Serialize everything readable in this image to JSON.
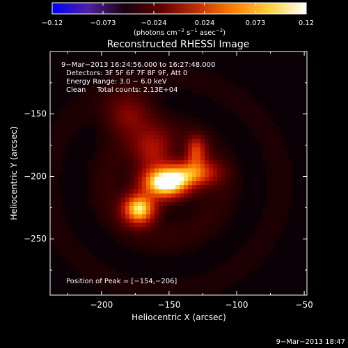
{
  "colorbar": {
    "ticks": [
      "−0.12",
      "−0.073",
      "−0.024",
      "0.024",
      "0.073",
      "0.12"
    ],
    "unit_parts": [
      "(photons cm",
      "−2",
      " s",
      "−1",
      " asec",
      "−2",
      ")"
    ],
    "colors": [
      "#0000ff",
      "#5020a0",
      "#1a0010",
      "#600000",
      "#c03000",
      "#ff8000",
      "#ffd040",
      "#ffffff"
    ]
  },
  "chart_data": {
    "type": "heatmap",
    "title": "Reconstructed RHESSI Image",
    "xlabel": "Heliocentric X (arcsec)",
    "ylabel": "Heliocentric Y (arcsec)",
    "xlim": [
      -238,
      -48
    ],
    "ylim": [
      -295,
      -100
    ],
    "xticks": [
      -200,
      -150,
      -100,
      -50
    ],
    "xtick_labels": [
      "−200",
      "−150",
      "−100",
      "−50"
    ],
    "yticks": [
      -150,
      -200,
      -250
    ],
    "ytick_labels": [
      "−150",
      "−200",
      "−250"
    ],
    "zlim": [
      -0.12,
      0.12
    ],
    "annotations": [
      "9−Mar−2013 16:24:56.000 to 16:27:48.000",
      "Detectors: 3F 5F 6F 7F 8F 9F, Att 0",
      "Energy Range: 3.0 − 6.0 keV",
      "Clean     Total counts: 2.13E+04"
    ],
    "peak_label": "Position of Peak = [−154,−206]",
    "peak": [
      -154,
      -206
    ],
    "sources": [
      {
        "x": -152,
        "y": -205,
        "amp": 0.12,
        "sx": 12,
        "sy": 8
      },
      {
        "x": -172,
        "y": -226,
        "amp": 0.11,
        "sx": 8,
        "sy": 8
      },
      {
        "x": -132,
        "y": -197,
        "amp": 0.07,
        "sx": 12,
        "sy": 7
      },
      {
        "x": -130,
        "y": -180,
        "amp": 0.055,
        "sx": 5,
        "sy": 8
      },
      {
        "x": -162,
        "y": -180,
        "amp": 0.04,
        "sx": 10,
        "sy": 12
      },
      {
        "x": -180,
        "y": -150,
        "amp": 0.03,
        "sx": 12,
        "sy": 12
      }
    ]
  },
  "footer": {
    "timestamp": "9−Mar−2013 18:47"
  }
}
